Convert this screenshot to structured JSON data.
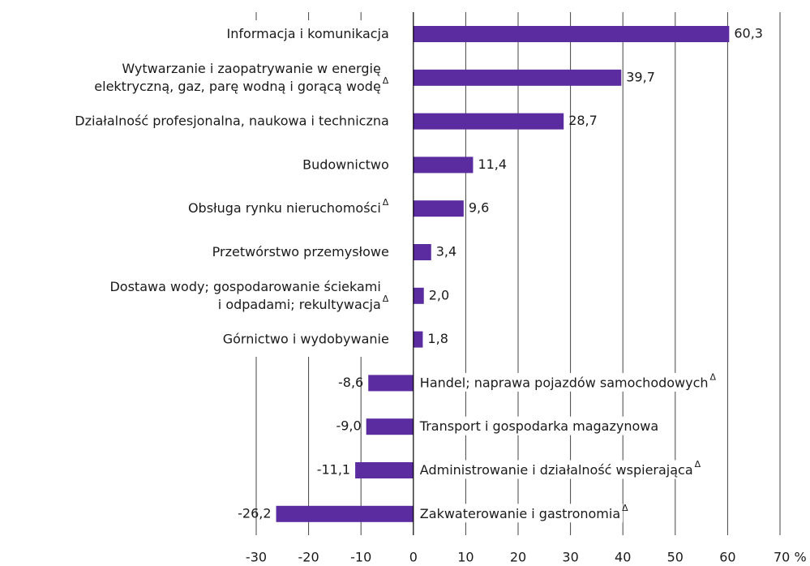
{
  "chart_data": {
    "type": "bar",
    "orientation": "horizontal",
    "categories": [
      "Informacja i komunikacja",
      "Wytwarzanie i zaopatrywanie w energię\nelektryczną, gaz, parę wodną i gorącą wodę",
      "Działalność profesjonalna, naukowa i techniczna",
      "Budownictwo",
      "Obsługa rynku nieruchomości",
      "Przetwórstwo przemysłowe",
      "Dostawa wody; gospodarowanie ściekami\ni odpadami; rekultywacja",
      "Górnictwo i wydobywanie",
      "Handel; naprawa pojazdów samochodowych",
      "Transport i gospodarka magazynowa",
      "Administrowanie i działalność wspierająca",
      "Zakwaterowanie i gastronomia"
    ],
    "category_notes": [
      null,
      "Δ",
      null,
      null,
      "Δ",
      null,
      "Δ",
      null,
      "Δ",
      null,
      "Δ",
      "Δ"
    ],
    "values": [
      60.3,
      39.7,
      28.7,
      11.4,
      9.6,
      3.4,
      2.0,
      1.8,
      -8.6,
      -9.0,
      -11.1,
      -26.2
    ],
    "value_labels": [
      "60,3",
      "39,7",
      "28,7",
      "11,4",
      "9,6",
      "3,4",
      "2,0",
      "1,8",
      "-8,6",
      "-9,0",
      "-11,1",
      "-26,2"
    ],
    "color": "#5a2ca0",
    "xlim": [
      -30,
      70
    ],
    "xticks": [
      -30,
      -20,
      -10,
      0,
      10,
      20,
      30,
      40,
      50,
      60,
      {
        "value": 70,
        "label": "70 %"
      }
    ],
    "grid": true
  }
}
